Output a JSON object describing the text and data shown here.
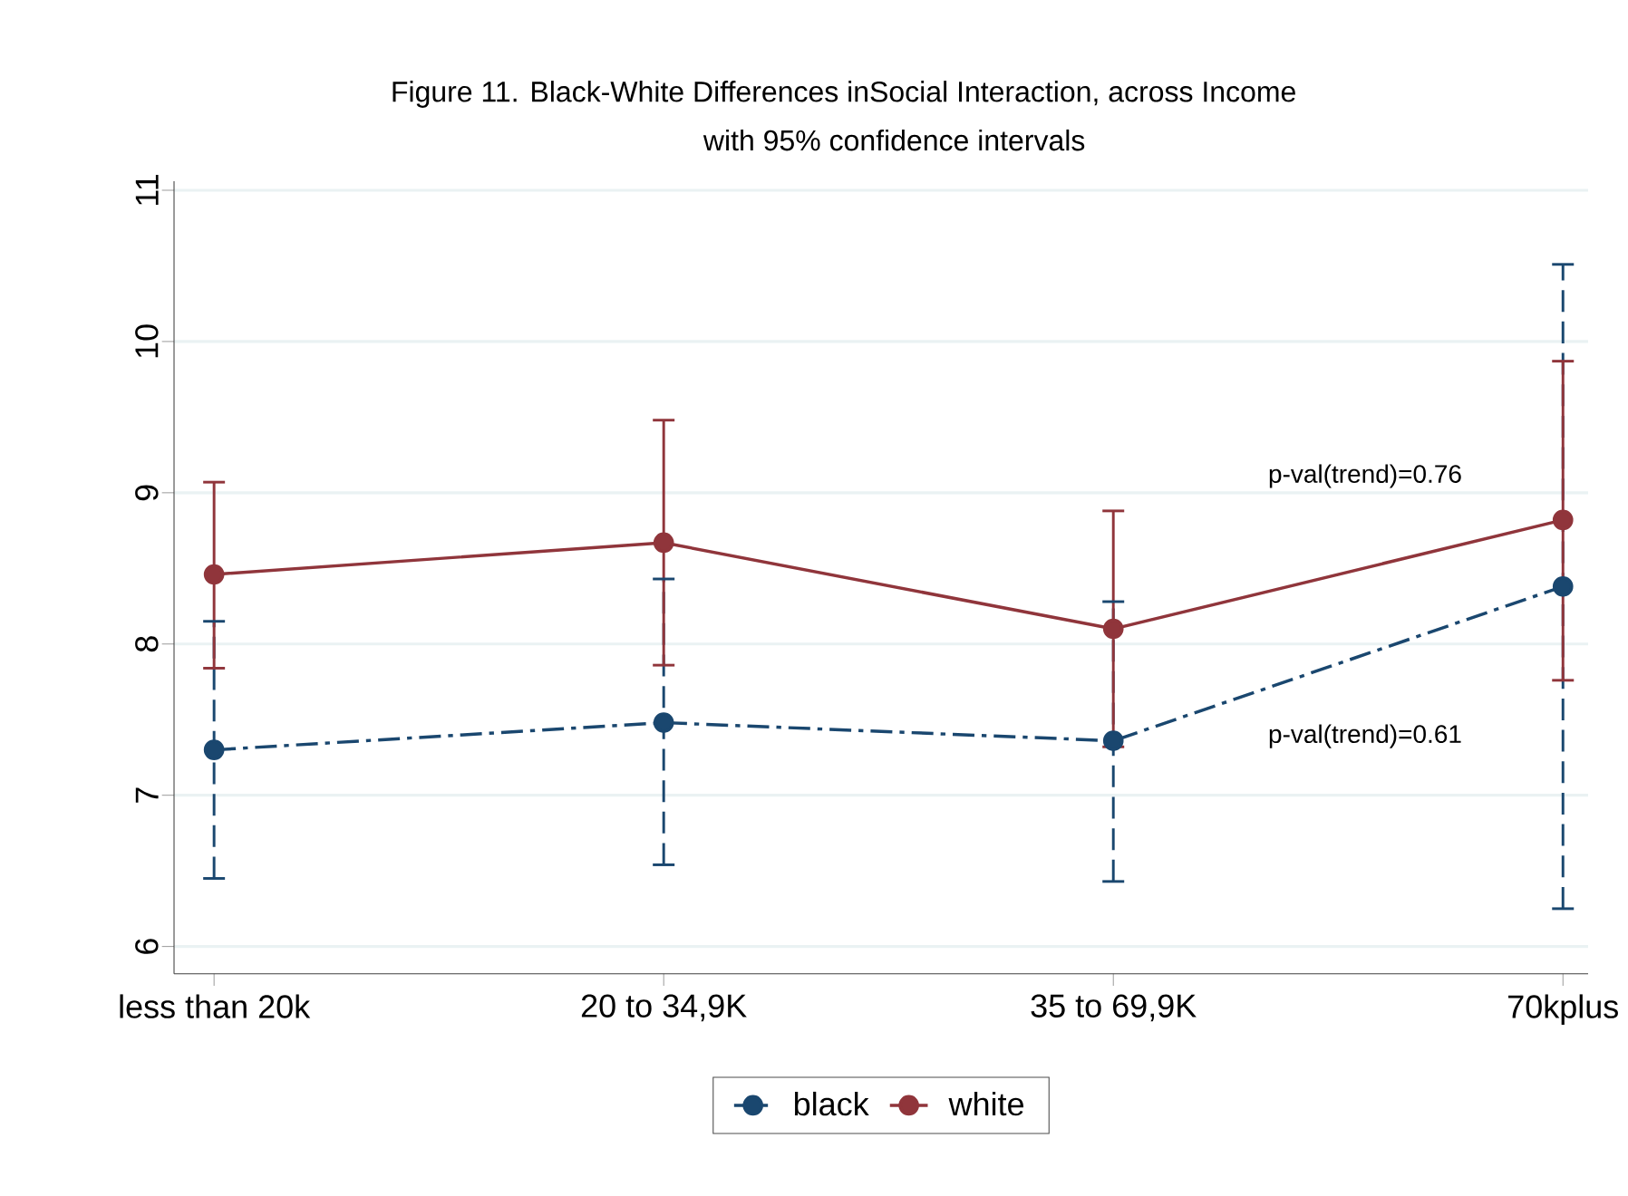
{
  "chart_data": {
    "type": "line",
    "title": "Figure 11. Black-White Differences inSocial Interaction, across Income",
    "subtitle": "with 95% confidence intervals",
    "categories": [
      "less than 20k",
      "20 to 34,9K",
      "35 to 69,9K",
      "70kplus"
    ],
    "series": [
      {
        "name": "black",
        "color": "#1a476f",
        "line_style": "dashed",
        "values": [
          7.3,
          7.48,
          7.36,
          8.38
        ],
        "errors": [
          [
            6.45,
            8.15
          ],
          [
            6.54,
            8.43
          ],
          [
            6.43,
            8.28
          ],
          [
            6.25,
            10.51
          ]
        ]
      },
      {
        "name": "white",
        "color": "#90353b",
        "line_style": "solid",
        "values": [
          8.46,
          8.67,
          8.1,
          8.82
        ],
        "errors": [
          [
            7.84,
            9.07
          ],
          [
            7.86,
            9.48
          ],
          [
            7.32,
            8.88
          ],
          [
            7.76,
            9.87
          ]
        ]
      }
    ],
    "ylim": [
      5.82,
      11.06
    ],
    "yticks": [
      6,
      7,
      8,
      9,
      10,
      11
    ],
    "grid": "y",
    "legend": "bottom",
    "marker": "circle",
    "annotations": [
      "p-val(trend)=0.76",
      "p-val(trend)=0.61"
    ]
  }
}
